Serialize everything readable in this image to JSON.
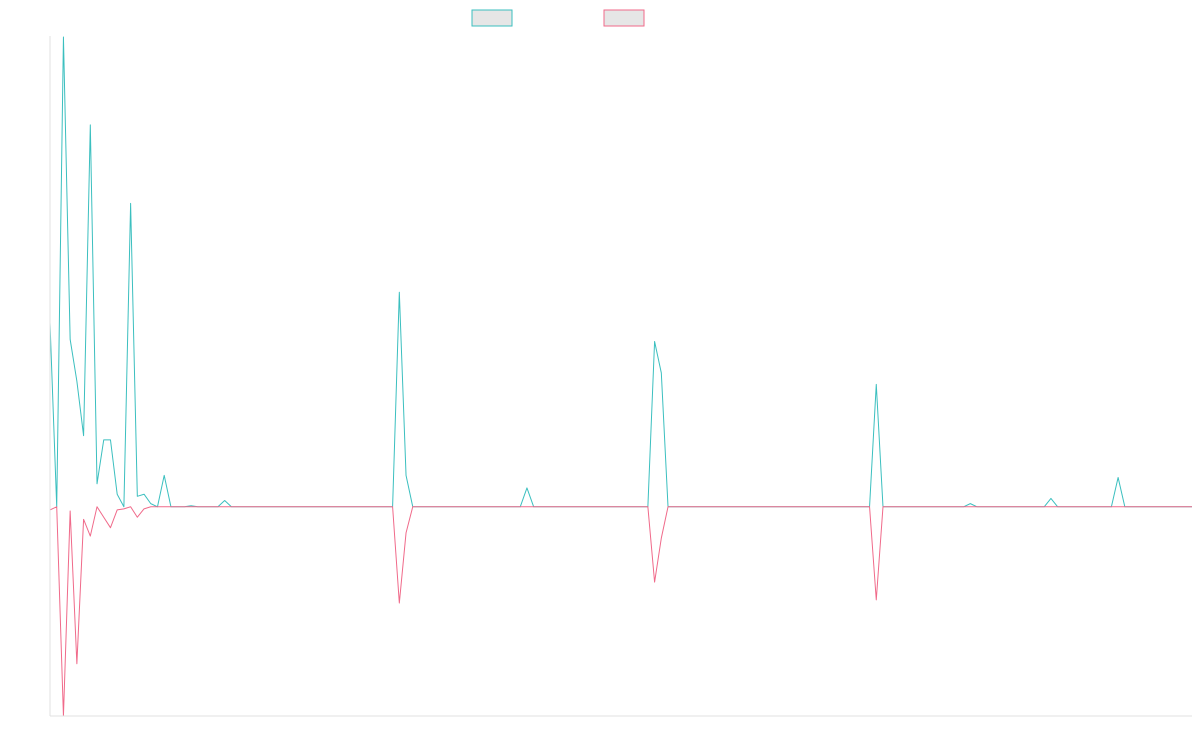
{
  "chart_data": {
    "type": "line",
    "title": "",
    "xlabel": "",
    "ylabel": "",
    "grid": false,
    "legend_position": "top-center",
    "ylim": [
      -200,
      450
    ],
    "x_count": 171,
    "series": [
      {
        "name": "",
        "stroke": "#3bbfbf",
        "fill": "#e6e6e6",
        "points": [
          [
            0,
            176
          ],
          [
            1,
            0
          ],
          [
            2,
            449
          ],
          [
            3,
            160
          ],
          [
            4,
            120
          ],
          [
            5,
            68
          ],
          [
            6,
            365
          ],
          [
            7,
            22
          ],
          [
            8,
            64
          ],
          [
            9,
            64
          ],
          [
            10,
            12
          ],
          [
            11,
            0
          ],
          [
            12,
            290
          ],
          [
            13,
            10
          ],
          [
            14,
            12
          ],
          [
            15,
            3
          ],
          [
            16,
            0
          ],
          [
            17,
            30
          ],
          [
            18,
            0
          ],
          [
            20,
            0
          ],
          [
            21,
            1
          ],
          [
            22,
            0
          ],
          [
            23,
            0
          ],
          [
            24,
            0
          ],
          [
            25,
            0
          ],
          [
            26,
            6
          ],
          [
            27,
            0
          ],
          [
            28,
            0
          ],
          [
            29,
            0
          ],
          [
            30,
            0
          ],
          [
            31,
            0
          ],
          [
            32,
            0
          ],
          [
            33,
            0
          ],
          [
            34,
            0
          ],
          [
            35,
            0
          ],
          [
            36,
            0
          ],
          [
            37,
            0
          ],
          [
            38,
            0
          ],
          [
            39,
            0
          ],
          [
            40,
            0
          ],
          [
            41,
            0
          ],
          [
            42,
            0
          ],
          [
            43,
            0
          ],
          [
            44,
            0
          ],
          [
            45,
            0
          ],
          [
            46,
            0
          ],
          [
            47,
            0
          ],
          [
            48,
            0
          ],
          [
            49,
            0
          ],
          [
            50,
            0
          ],
          [
            51,
            0
          ],
          [
            52,
            205
          ],
          [
            53,
            30
          ],
          [
            54,
            0
          ],
          [
            55,
            0
          ],
          [
            56,
            0
          ],
          [
            57,
            0
          ],
          [
            58,
            0
          ],
          [
            59,
            0
          ],
          [
            60,
            0
          ],
          [
            61,
            0
          ],
          [
            62,
            0
          ],
          [
            63,
            0
          ],
          [
            64,
            0
          ],
          [
            65,
            0
          ],
          [
            66,
            0
          ],
          [
            67,
            0
          ],
          [
            68,
            0
          ],
          [
            69,
            0
          ],
          [
            70,
            0
          ],
          [
            71,
            18
          ],
          [
            72,
            0
          ],
          [
            73,
            0
          ],
          [
            74,
            0
          ],
          [
            75,
            0
          ],
          [
            76,
            0
          ],
          [
            77,
            0
          ],
          [
            78,
            0
          ],
          [
            79,
            0
          ],
          [
            80,
            0
          ],
          [
            81,
            0
          ],
          [
            82,
            0
          ],
          [
            83,
            0
          ],
          [
            84,
            0
          ],
          [
            85,
            0
          ],
          [
            86,
            0
          ],
          [
            87,
            0
          ],
          [
            88,
            0
          ],
          [
            89,
            0
          ],
          [
            90,
            158
          ],
          [
            91,
            128
          ],
          [
            92,
            0
          ],
          [
            93,
            0
          ],
          [
            94,
            0
          ],
          [
            95,
            0
          ],
          [
            96,
            0
          ],
          [
            97,
            0
          ],
          [
            98,
            0
          ],
          [
            99,
            0
          ],
          [
            100,
            0
          ],
          [
            101,
            0
          ],
          [
            102,
            0
          ],
          [
            103,
            0
          ],
          [
            104,
            0
          ],
          [
            105,
            0
          ],
          [
            110,
            0
          ],
          [
            111,
            0
          ],
          [
            112,
            0
          ],
          [
            113,
            0
          ],
          [
            114,
            0
          ],
          [
            115,
            0
          ],
          [
            116,
            0
          ],
          [
            117,
            0
          ],
          [
            118,
            0
          ],
          [
            119,
            0
          ],
          [
            120,
            0
          ],
          [
            121,
            0
          ],
          [
            122,
            0
          ],
          [
            123,
            117
          ],
          [
            124,
            0
          ],
          [
            125,
            0
          ],
          [
            136,
            0
          ],
          [
            137,
            3
          ],
          [
            138,
            0
          ],
          [
            148,
            0
          ],
          [
            149,
            8
          ],
          [
            150,
            0
          ],
          [
            158,
            0
          ],
          [
            159,
            28
          ],
          [
            160,
            0
          ],
          [
            161,
            0
          ],
          [
            170,
            0
          ]
        ]
      },
      {
        "name": "",
        "stroke": "#f06a8a",
        "fill": "#e6e6e6",
        "points": [
          [
            0,
            -3
          ],
          [
            1,
            0
          ],
          [
            2,
            -200
          ],
          [
            3,
            -4
          ],
          [
            4,
            -150
          ],
          [
            5,
            -12
          ],
          [
            6,
            -28
          ],
          [
            7,
            0
          ],
          [
            8,
            -10
          ],
          [
            9,
            -20
          ],
          [
            10,
            -3
          ],
          [
            11,
            -2
          ],
          [
            12,
            0
          ],
          [
            13,
            -10
          ],
          [
            14,
            -2
          ],
          [
            15,
            0
          ],
          [
            20,
            0
          ],
          [
            51,
            0
          ],
          [
            52,
            -92
          ],
          [
            53,
            -25
          ],
          [
            54,
            0
          ],
          [
            71,
            0
          ],
          [
            72,
            0
          ],
          [
            88,
            0
          ],
          [
            89,
            0
          ],
          [
            90,
            -72
          ],
          [
            91,
            -30
          ],
          [
            92,
            0
          ],
          [
            122,
            0
          ],
          [
            123,
            -89
          ],
          [
            124,
            0
          ],
          [
            170,
            0
          ]
        ]
      }
    ]
  }
}
